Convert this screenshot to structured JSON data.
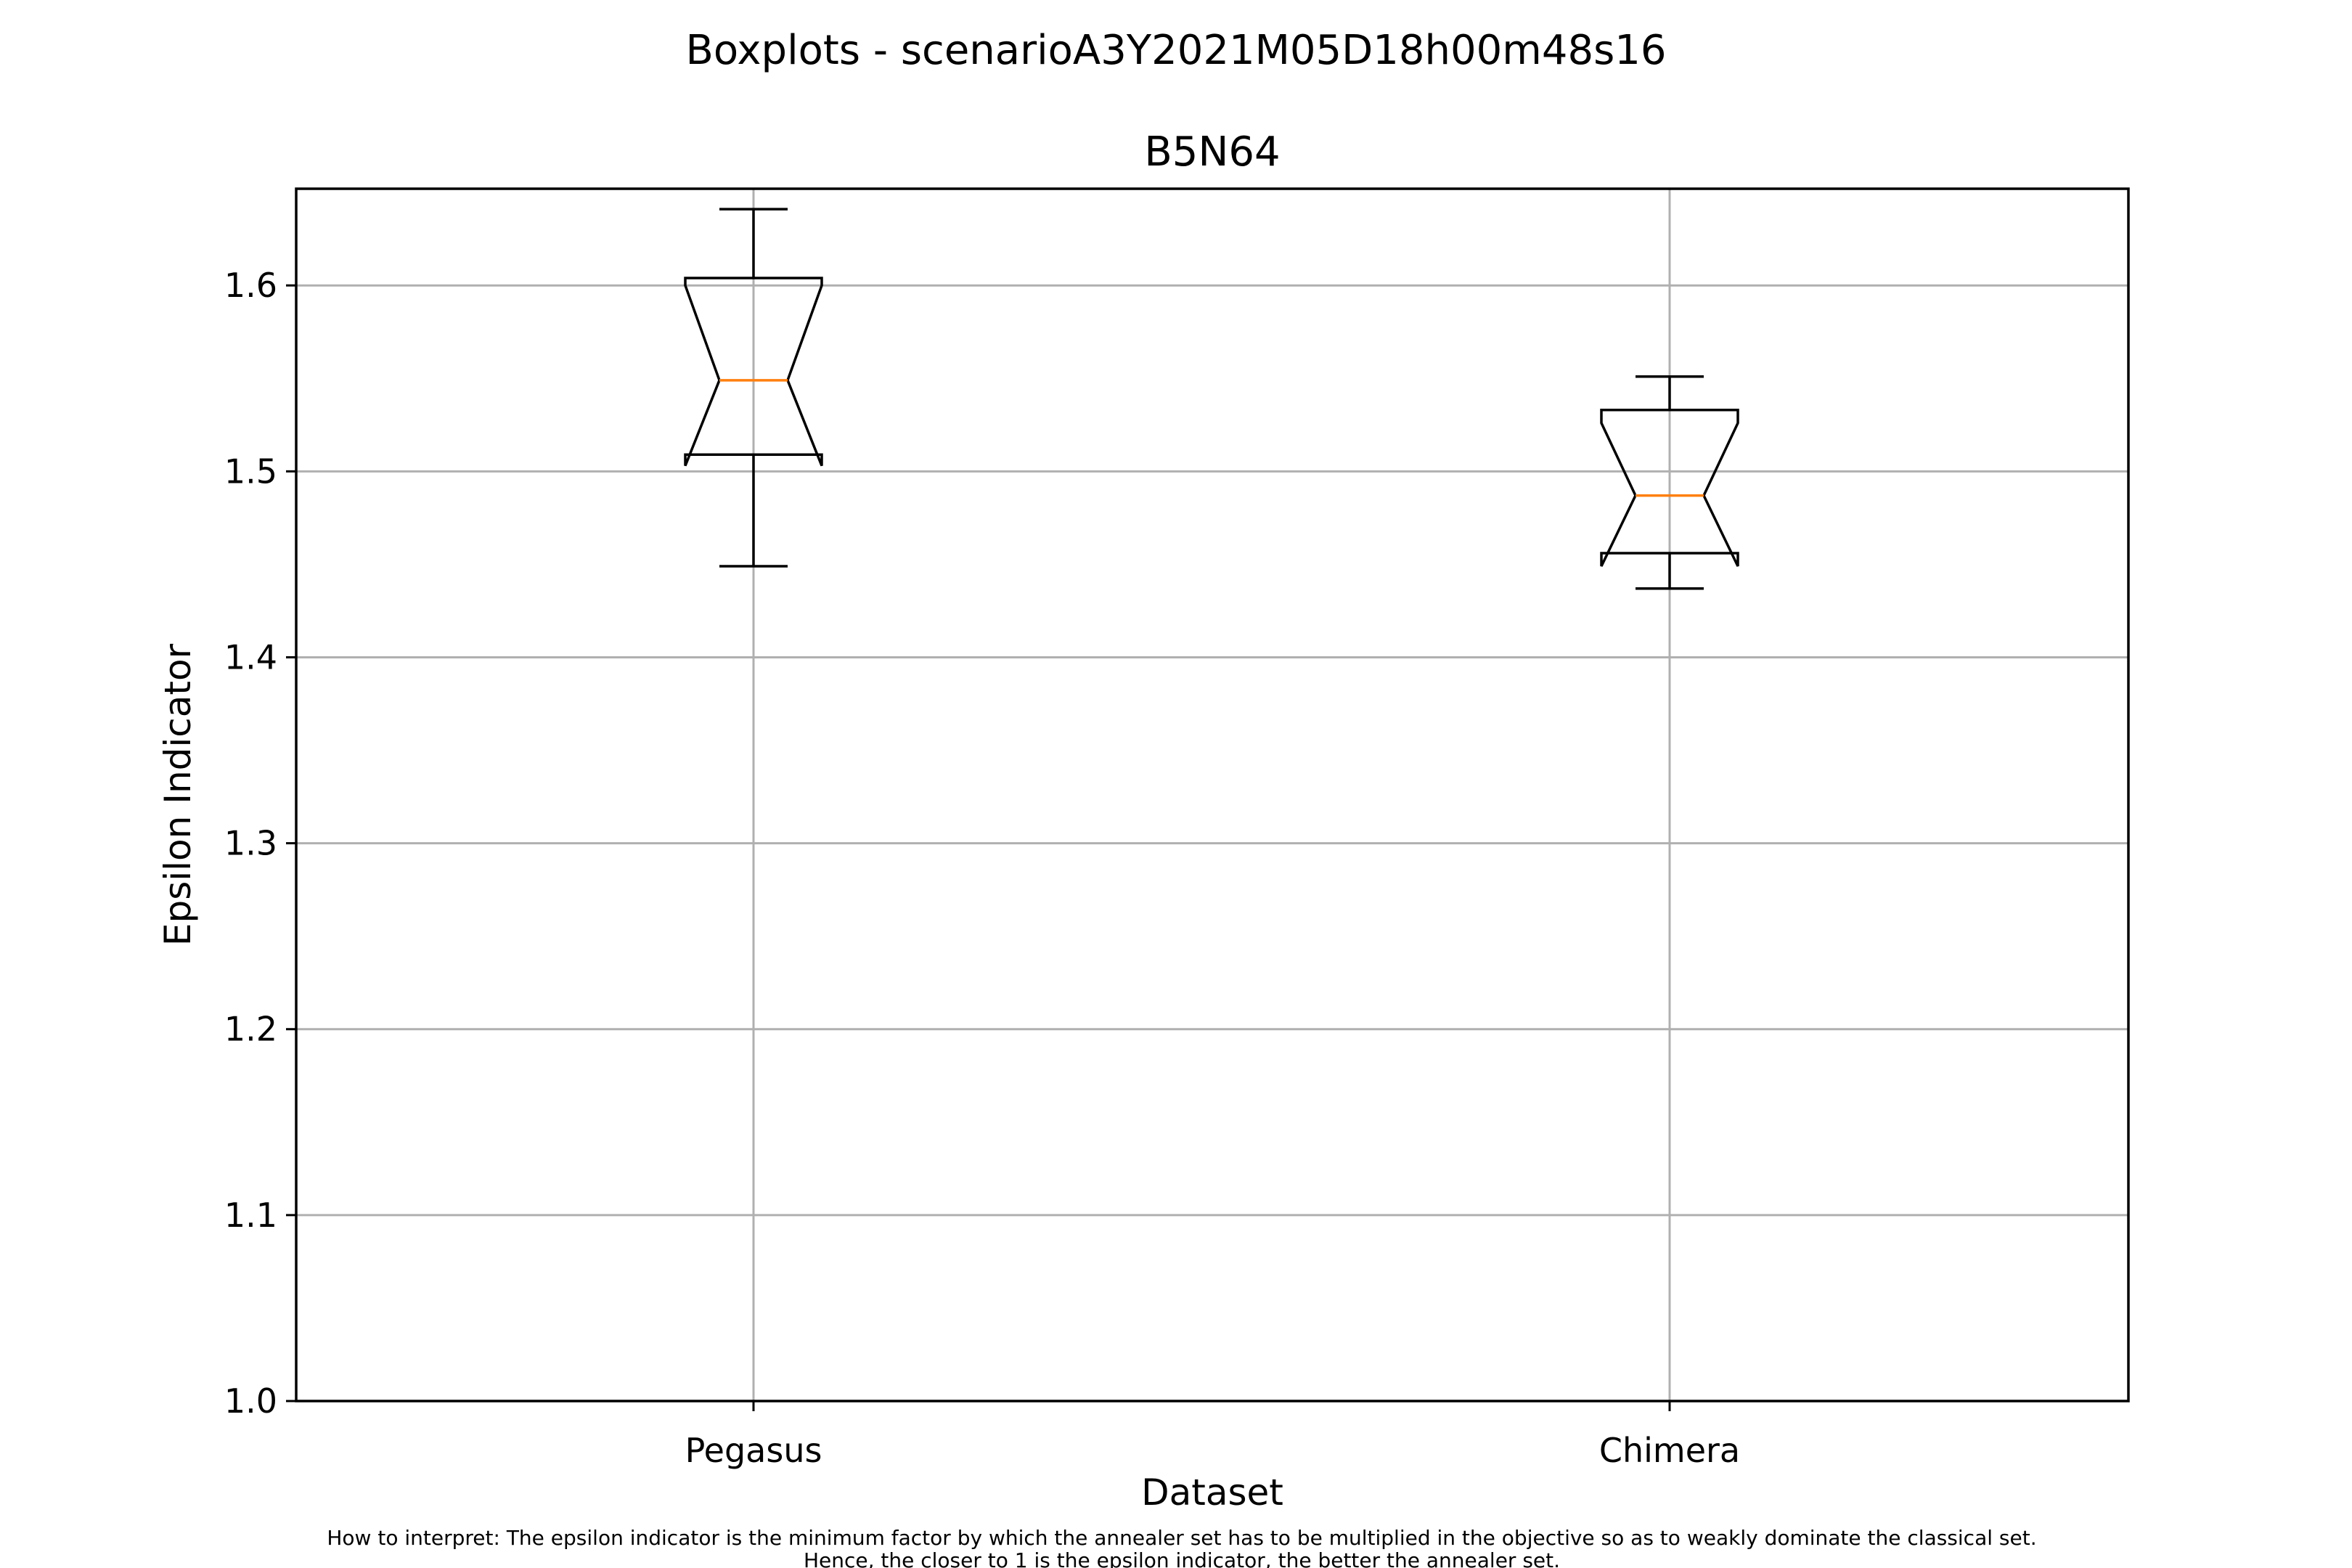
{
  "chart_data": {
    "type": "box",
    "title": "Boxplots - scenarioA3Y2021M05D18h00m48s16",
    "subtitle": "B5N64",
    "xlabel": "Dataset",
    "ylabel": "Epsilon Indicator",
    "categories": [
      "Pegasus",
      "Chimera"
    ],
    "ylim": [
      1.0,
      1.652
    ],
    "yticks": [
      1.0,
      1.1,
      1.2,
      1.3,
      1.4,
      1.5,
      1.6
    ],
    "ytick_labels": [
      "1.0",
      "1.1",
      "1.2",
      "1.3",
      "1.4",
      "1.5",
      "1.6"
    ],
    "notched": true,
    "grid": true,
    "boxes": [
      {
        "category": "Pegasus",
        "whisker_low": 1.449,
        "q1": 1.509,
        "median": 1.549,
        "q3": 1.604,
        "whisker_high": 1.641,
        "notch_low": 1.503,
        "notch_high": 1.6
      },
      {
        "category": "Chimera",
        "whisker_low": 1.437,
        "q1": 1.456,
        "median": 1.487,
        "q3": 1.533,
        "whisker_high": 1.551,
        "notch_low": 1.449,
        "notch_high": 1.526
      }
    ],
    "colors": {
      "box": "#000000",
      "median": "#ff7f0e",
      "grid": "#b0b0b0"
    }
  },
  "footnote": {
    "line1": "How to interpret: The epsilon indicator is the minimum factor by which the annealer set has to be multiplied in the objective so as to weakly dominate the classical set.",
    "line2": "Hence, the closer to 1 is the epsilon indicator, the better the annealer set."
  }
}
